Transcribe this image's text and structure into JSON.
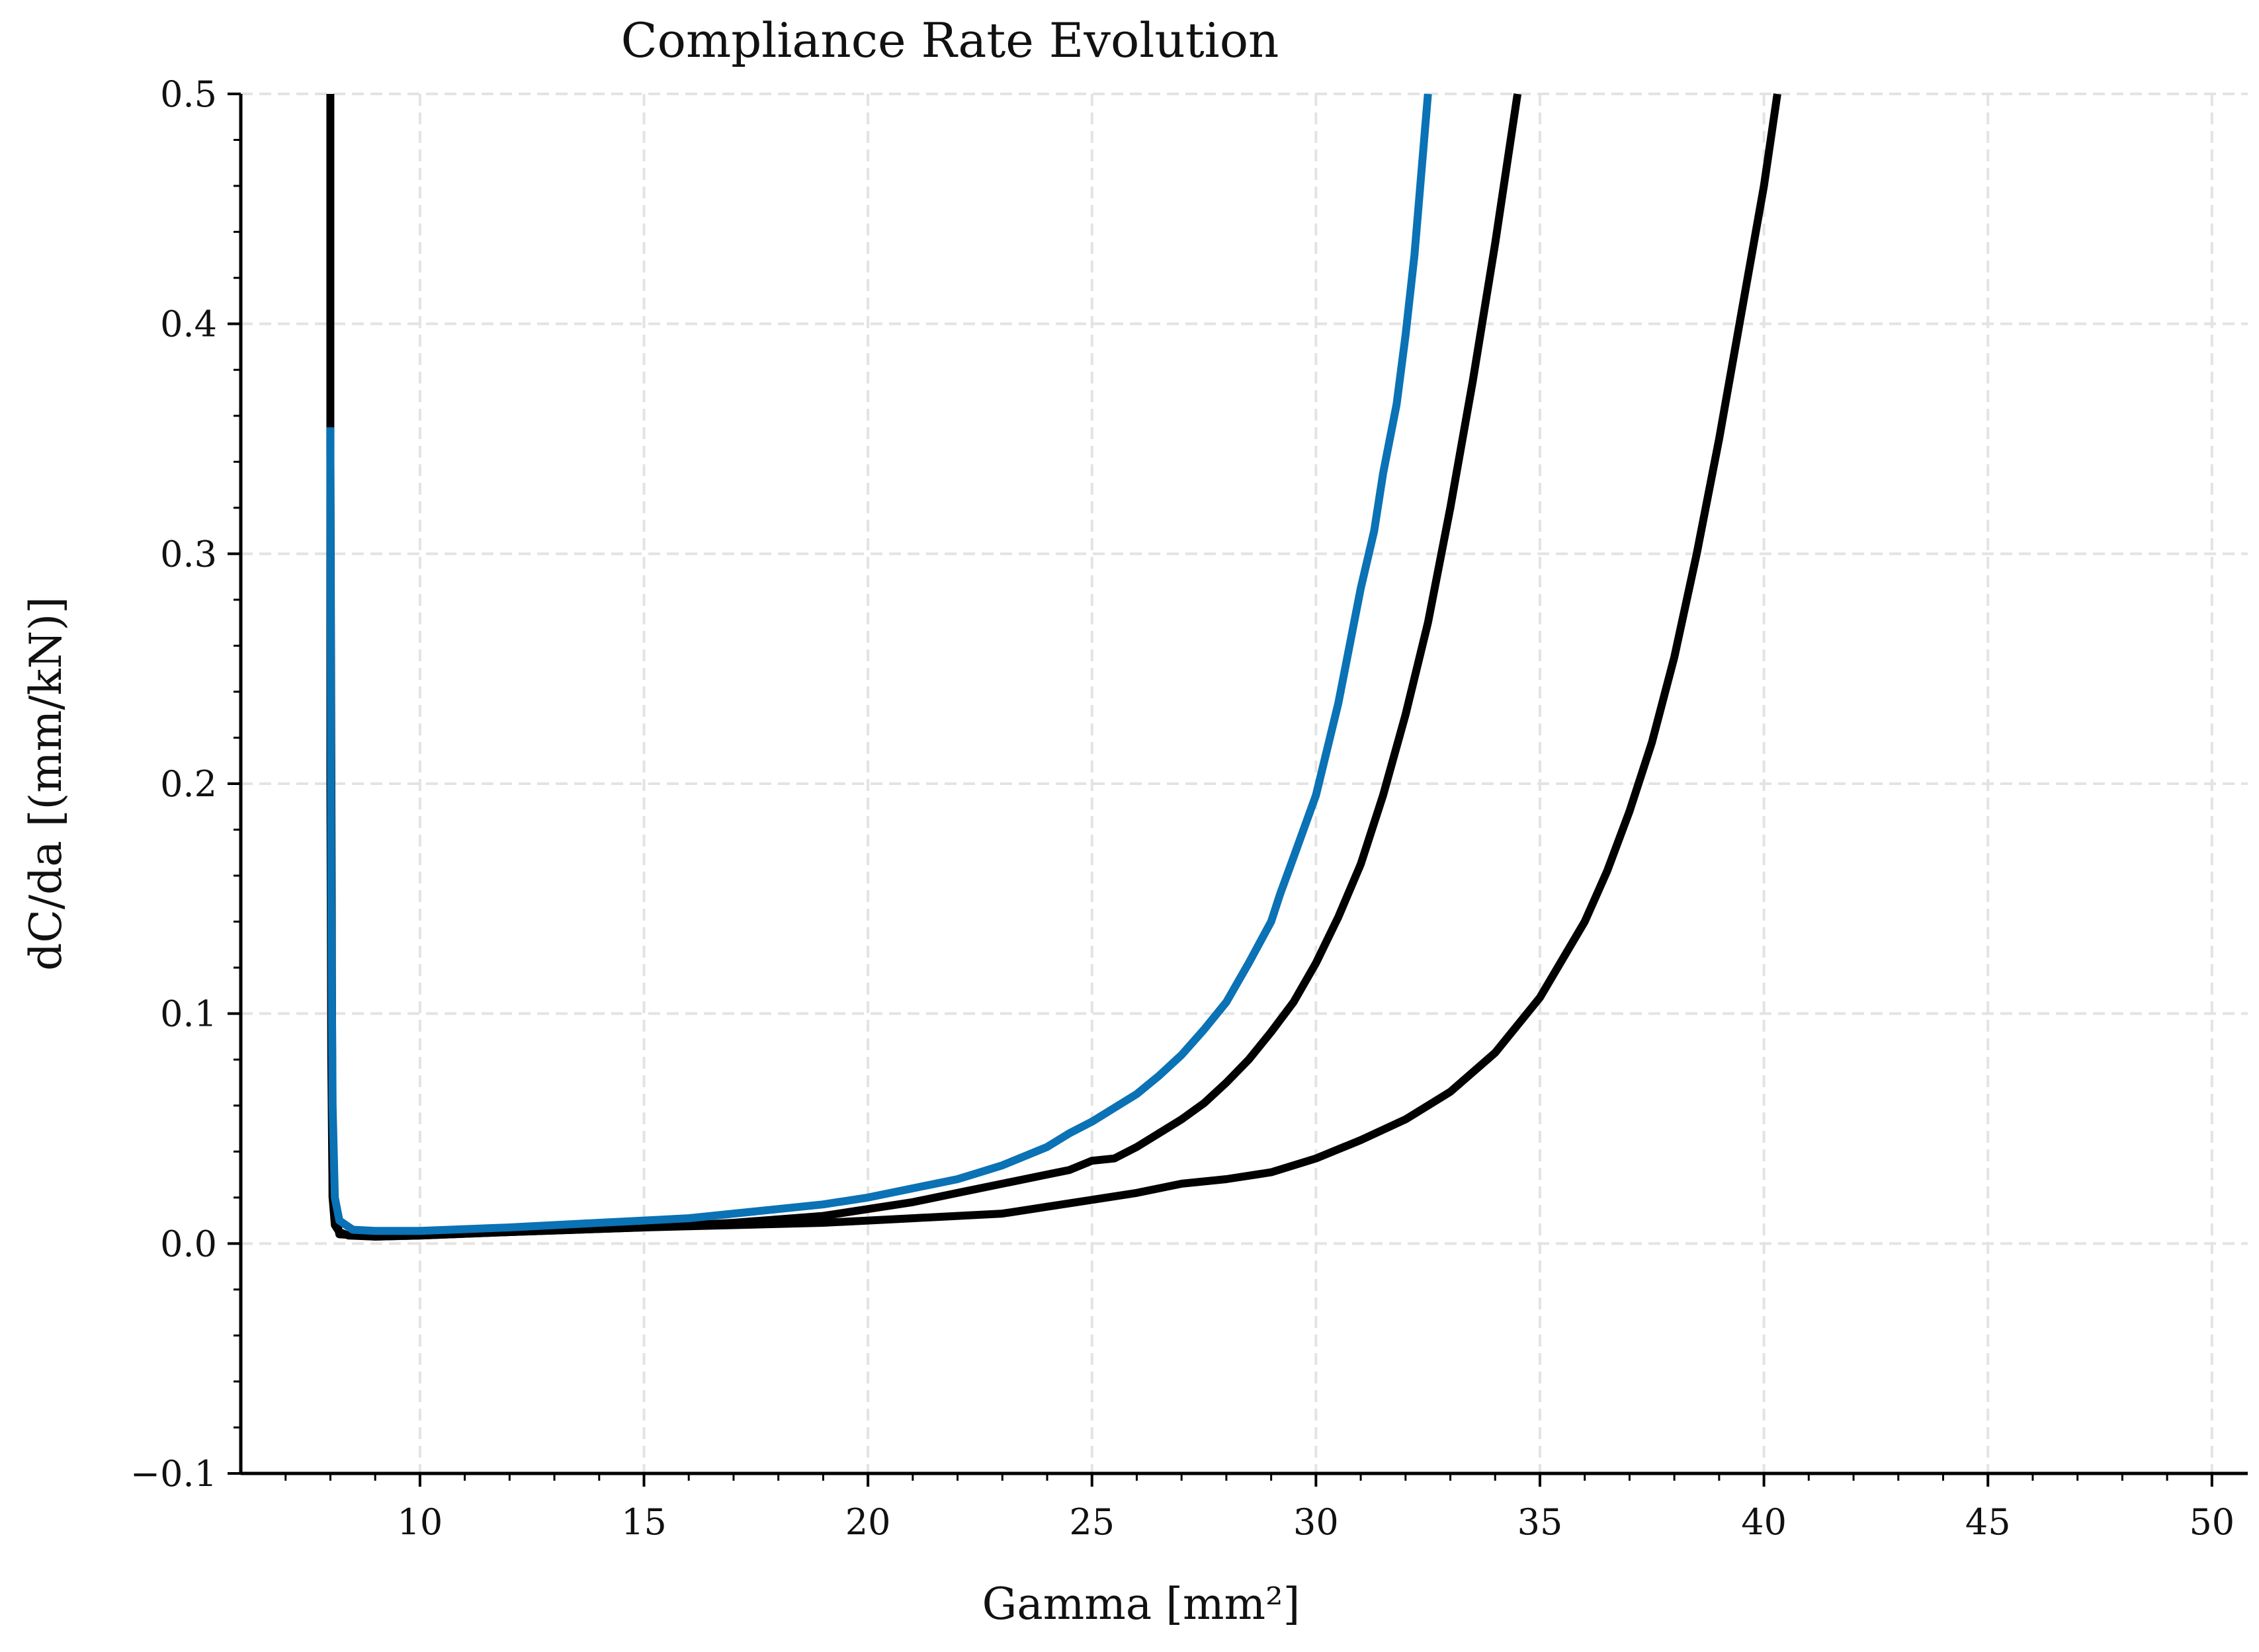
{
  "chart_data": {
    "type": "line",
    "title": "Compliance Rate Evolution",
    "xlabel": "Gamma [mm²]",
    "ylabel": "dC/da [(mm/kN)]",
    "xlim": [
      6,
      50.8
    ],
    "ylim": [
      -0.1,
      0.5
    ],
    "grid": true,
    "x_ticks": [
      10,
      15,
      20,
      25,
      30,
      35,
      40,
      45,
      50
    ],
    "y_ticks": [
      -0.1,
      0.0,
      0.1,
      0.2,
      0.3,
      0.4,
      0.5
    ],
    "y_tick_labels": [
      "−0.1",
      "0.0",
      "0.1",
      "0.2",
      "0.3",
      "0.4",
      "0.5"
    ],
    "series": [
      {
        "color": "#000000",
        "x": [
          8.0,
          8.0,
          8.02,
          8.05,
          8.1,
          8.2,
          8.4,
          9,
          10,
          12,
          15,
          17,
          19,
          20,
          21,
          22,
          23,
          24,
          24.5,
          25,
          25.5,
          26,
          26.5,
          27,
          27.5,
          28,
          28.5,
          29,
          29.5,
          30,
          30.5,
          31,
          31.5,
          32,
          32.5,
          33,
          33.5,
          34,
          34.5
        ],
        "y": [
          0.5,
          0.2,
          0.08,
          0.02,
          0.008,
          0.005,
          0.0035,
          0.003,
          0.0035,
          0.005,
          0.007,
          0.009,
          0.012,
          0.015,
          0.018,
          0.022,
          0.026,
          0.03,
          0.032,
          0.036,
          0.037,
          0.042,
          0.048,
          0.054,
          0.061,
          0.07,
          0.08,
          0.092,
          0.105,
          0.122,
          0.142,
          0.165,
          0.195,
          0.23,
          0.27,
          0.32,
          0.375,
          0.435,
          0.5
        ]
      },
      {
        "color": "#000000",
        "x": [
          8.0,
          8.05,
          8.2,
          9,
          10,
          12,
          15,
          17,
          19,
          20,
          21,
          22,
          23,
          24,
          25,
          26,
          27,
          28,
          29,
          30,
          31,
          32,
          33,
          34,
          35,
          36,
          36.5,
          37,
          37.5,
          38,
          38.5,
          39,
          39.5,
          40,
          40.3
        ],
        "y": [
          0.35,
          0.02,
          0.004,
          0.003,
          0.0035,
          0.005,
          0.007,
          0.008,
          0.009,
          0.01,
          0.011,
          0.012,
          0.013,
          0.016,
          0.019,
          0.022,
          0.026,
          0.028,
          0.031,
          0.037,
          0.045,
          0.054,
          0.066,
          0.083,
          0.107,
          0.14,
          0.162,
          0.188,
          0.218,
          0.255,
          0.3,
          0.35,
          0.405,
          0.46,
          0.5
        ]
      },
      {
        "color": "#0a72b5",
        "x": [
          8.0,
          8.02,
          8.05,
          8.1,
          8.2,
          8.5,
          9,
          10,
          12,
          14,
          15,
          16,
          17,
          18,
          19,
          20,
          21,
          22,
          22.5,
          23,
          23.5,
          24,
          24.5,
          25,
          25.5,
          26,
          26.5,
          27,
          27.5,
          28,
          28.5,
          29,
          29.2,
          29.5,
          30,
          30.5,
          31,
          31.3,
          31.5,
          31.8,
          32,
          32.2,
          32.5
        ],
        "y": [
          0.355,
          0.15,
          0.06,
          0.02,
          0.01,
          0.006,
          0.0055,
          0.0055,
          0.007,
          0.009,
          0.01,
          0.011,
          0.013,
          0.015,
          0.017,
          0.02,
          0.024,
          0.028,
          0.031,
          0.034,
          0.038,
          0.042,
          0.048,
          0.053,
          0.059,
          0.065,
          0.073,
          0.082,
          0.093,
          0.105,
          0.122,
          0.14,
          0.152,
          0.168,
          0.195,
          0.235,
          0.285,
          0.31,
          0.335,
          0.365,
          0.395,
          0.43,
          0.5
        ]
      }
    ]
  }
}
